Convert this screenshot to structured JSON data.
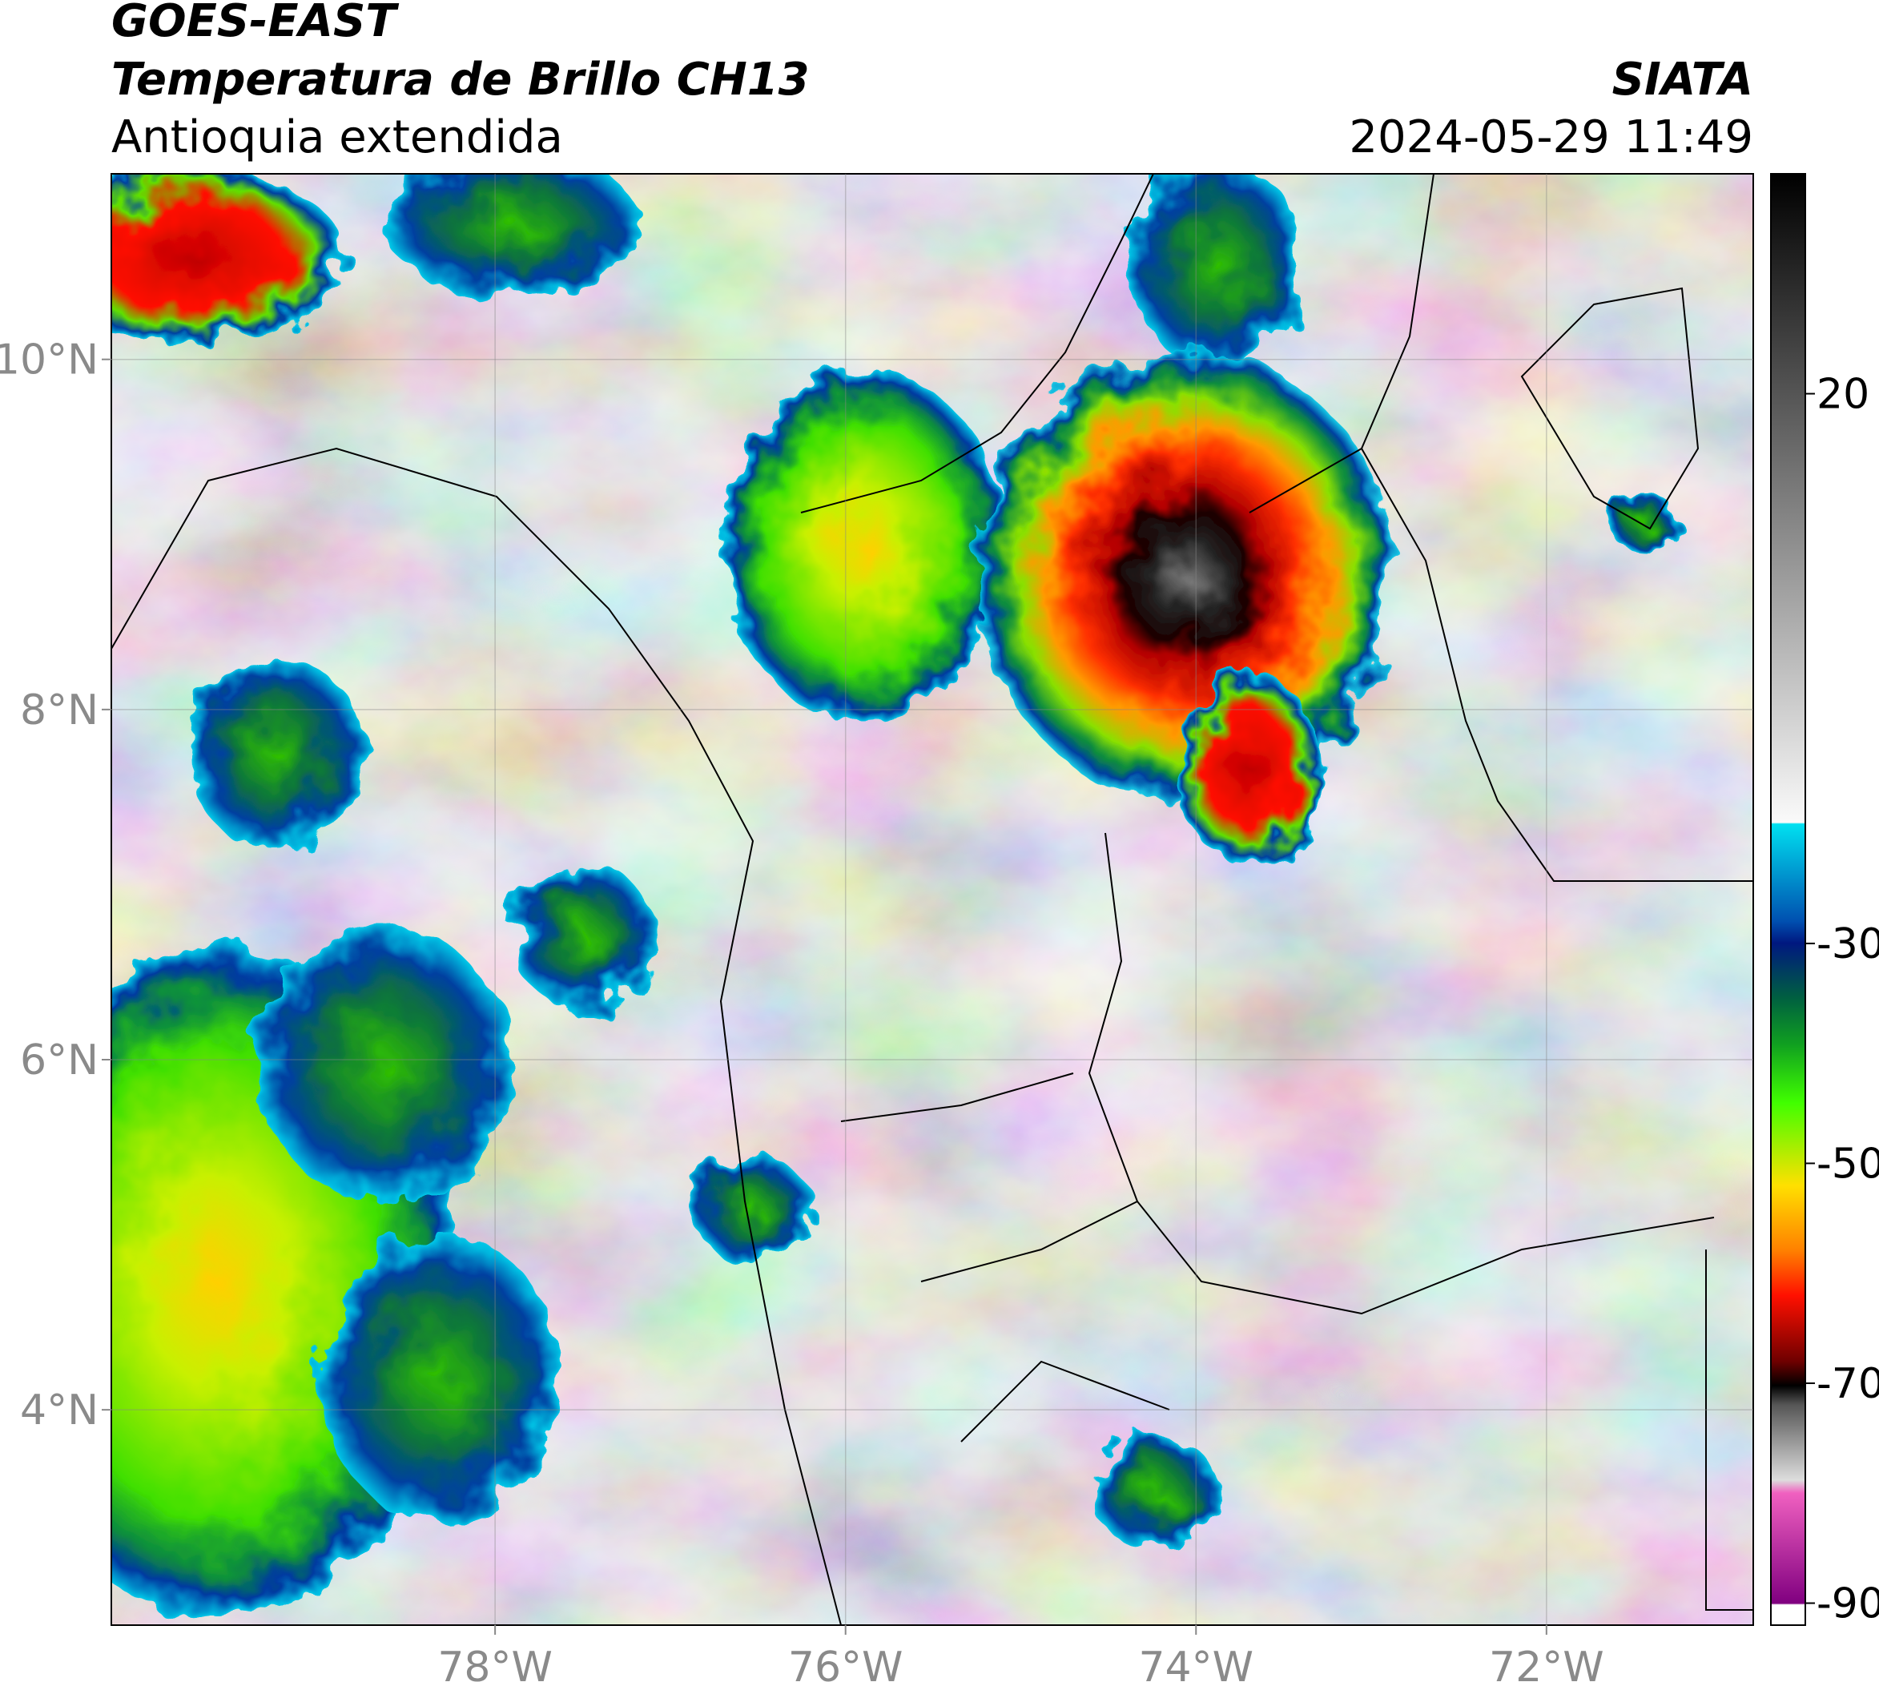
{
  "chart_data": {
    "type": "map",
    "title": "GOES-EAST",
    "subtitle": "Temperatura de Brillo CH13",
    "region": "Antioquia extendida",
    "source": "SIATA",
    "datetime": "2024-05-29 11:49",
    "xlim": [
      -80.19,
      -70.82
    ],
    "ylim": [
      2.77,
      11.06
    ],
    "xticks": [
      {
        "value": -78,
        "label": "78°W"
      },
      {
        "value": -76,
        "label": "76°W"
      },
      {
        "value": -74,
        "label": "74°W"
      },
      {
        "value": -72,
        "label": "72°W"
      }
    ],
    "yticks": [
      {
        "value": 10,
        "label": "10°N"
      },
      {
        "value": 8,
        "label": "8°N"
      },
      {
        "value": 6,
        "label": "6°N"
      },
      {
        "value": 4,
        "label": "4°N"
      }
    ],
    "grid": true,
    "colorbar": {
      "lim": [
        -92,
        40
      ],
      "ticks": [
        20,
        -30,
        -50,
        -70,
        -90
      ]
    }
  }
}
